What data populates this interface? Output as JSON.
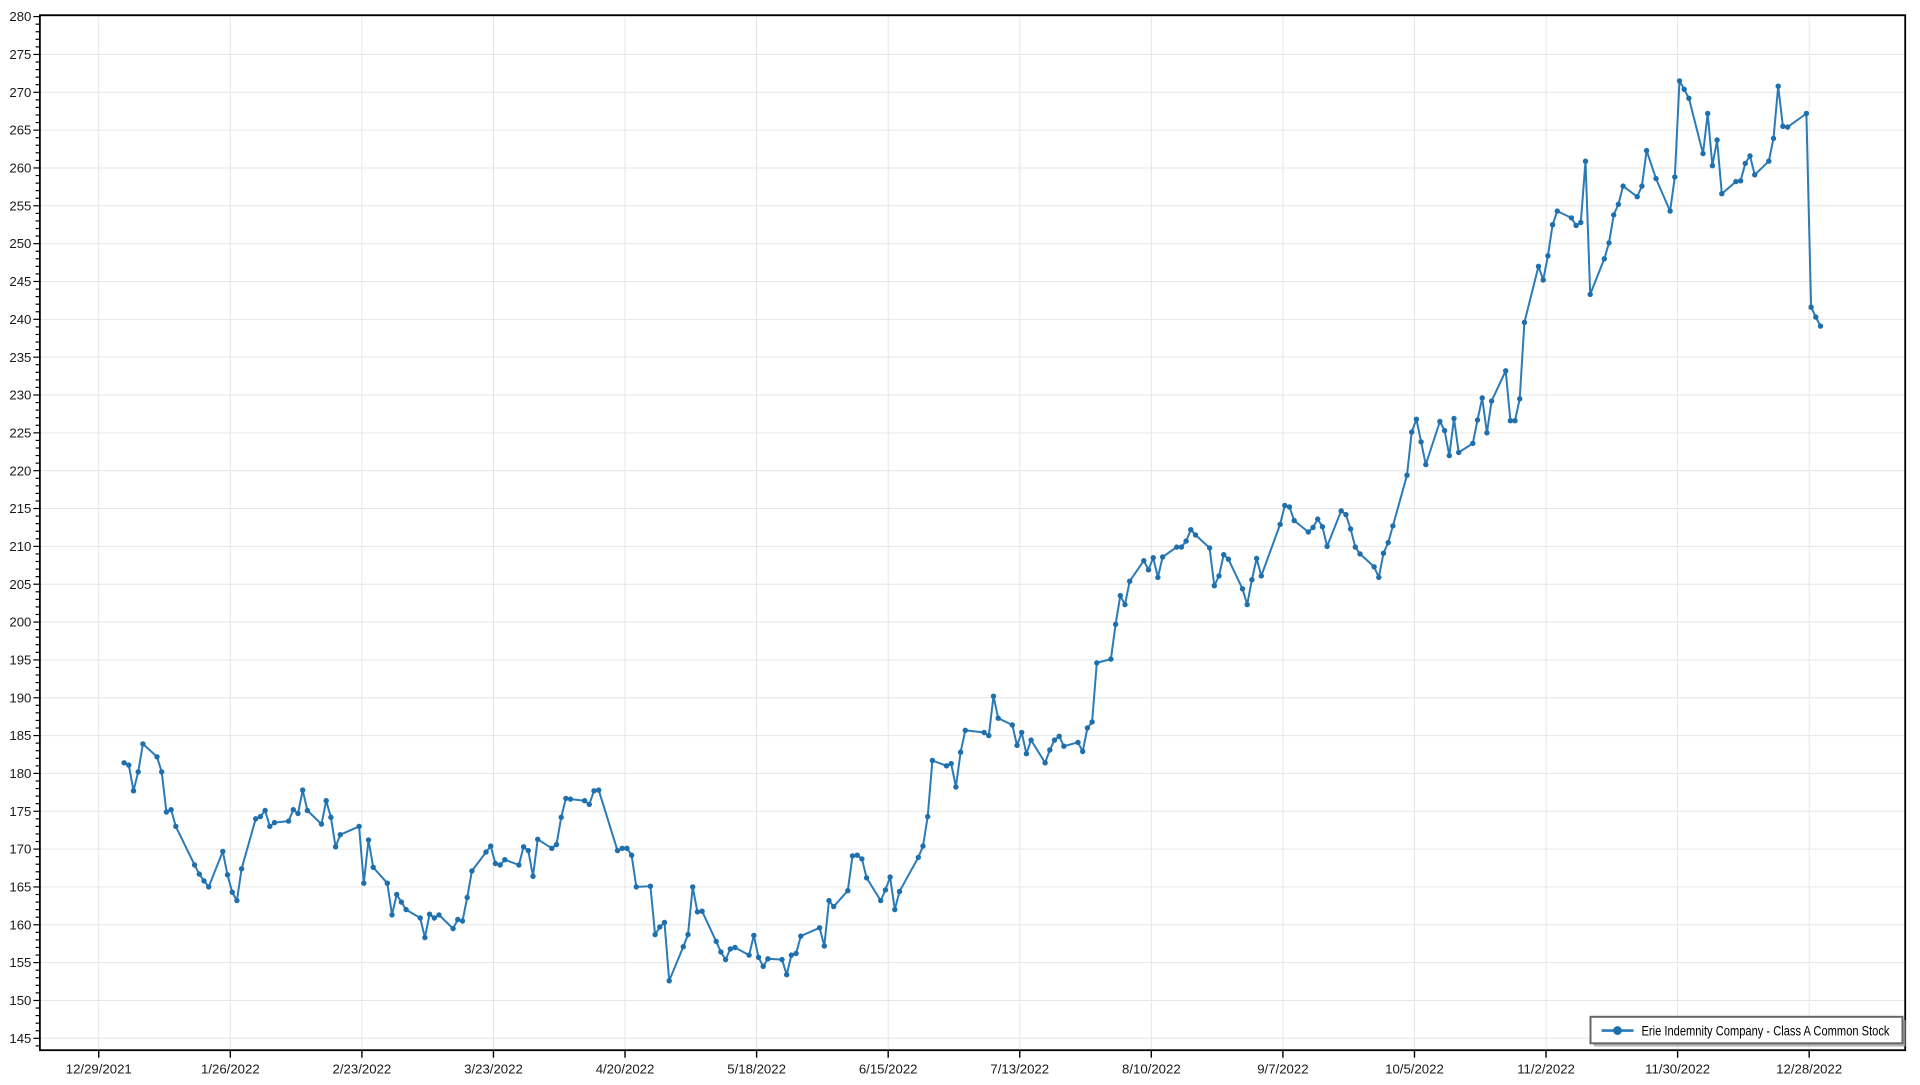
{
  "chart_data": {
    "type": "line",
    "title": "",
    "series": [
      {
        "name": "Erie Indemnity Company - Class A Common Stock",
        "dates": [
          "1/3/2022",
          "1/4/2022",
          "1/5/2022",
          "1/6/2022",
          "1/7/2022",
          "1/10/2022",
          "1/11/2022",
          "1/12/2022",
          "1/13/2022",
          "1/14/2022",
          "1/18/2022",
          "1/19/2022",
          "1/20/2022",
          "1/21/2022",
          "1/24/2022",
          "1/25/2022",
          "1/26/2022",
          "1/27/2022",
          "1/28/2022",
          "1/31/2022",
          "2/1/2022",
          "2/2/2022",
          "2/3/2022",
          "2/4/2022",
          "2/7/2022",
          "2/8/2022",
          "2/9/2022",
          "2/10/2022",
          "2/11/2022",
          "2/14/2022",
          "2/15/2022",
          "2/16/2022",
          "2/17/2022",
          "2/18/2022",
          "2/22/2022",
          "2/23/2022",
          "2/24/2022",
          "2/25/2022",
          "2/28/2022",
          "3/1/2022",
          "3/2/2022",
          "3/3/2022",
          "3/4/2022",
          "3/7/2022",
          "3/8/2022",
          "3/9/2022",
          "3/10/2022",
          "3/11/2022",
          "3/14/2022",
          "3/15/2022",
          "3/16/2022",
          "3/17/2022",
          "3/18/2022",
          "3/21/2022",
          "3/22/2022",
          "3/23/2022",
          "3/24/2022",
          "3/25/2022",
          "3/28/2022",
          "3/29/2022",
          "3/30/2022",
          "3/31/2022",
          "4/1/2022",
          "4/4/2022",
          "4/5/2022",
          "4/6/2022",
          "4/7/2022",
          "4/8/2022",
          "4/11/2022",
          "4/12/2022",
          "4/13/2022",
          "4/14/2022",
          "4/18/2022",
          "4/19/2022",
          "4/20/2022",
          "4/21/2022",
          "4/22/2022",
          "4/25/2022",
          "4/26/2022",
          "4/27/2022",
          "4/28/2022",
          "4/29/2022",
          "5/2/2022",
          "5/3/2022",
          "5/4/2022",
          "5/5/2022",
          "5/6/2022",
          "5/9/2022",
          "5/10/2022",
          "5/11/2022",
          "5/12/2022",
          "5/13/2022",
          "5/16/2022",
          "5/17/2022",
          "5/18/2022",
          "5/19/2022",
          "5/20/2022",
          "5/23/2022",
          "5/24/2022",
          "5/25/2022",
          "5/26/2022",
          "5/27/2022",
          "5/31/2022",
          "6/1/2022",
          "6/2/2022",
          "6/3/2022",
          "6/6/2022",
          "6/7/2022",
          "6/8/2022",
          "6/9/2022",
          "6/10/2022",
          "6/13/2022",
          "6/14/2022",
          "6/15/2022",
          "6/16/2022",
          "6/17/2022",
          "6/21/2022",
          "6/22/2022",
          "6/23/2022",
          "6/24/2022",
          "6/27/2022",
          "6/28/2022",
          "6/29/2022",
          "6/30/2022",
          "7/1/2022",
          "7/5/2022",
          "7/6/2022",
          "7/7/2022",
          "7/8/2022",
          "7/11/2022",
          "7/12/2022",
          "7/13/2022",
          "7/14/2022",
          "7/15/2022",
          "7/18/2022",
          "7/19/2022",
          "7/20/2022",
          "7/21/2022",
          "7/22/2022",
          "7/25/2022",
          "7/26/2022",
          "7/27/2022",
          "7/28/2022",
          "7/29/2022",
          "8/1/2022",
          "8/2/2022",
          "8/3/2022",
          "8/4/2022",
          "8/5/2022",
          "8/8/2022",
          "8/9/2022",
          "8/10/2022",
          "8/11/2022",
          "8/12/2022",
          "8/15/2022",
          "8/16/2022",
          "8/17/2022",
          "8/18/2022",
          "8/19/2022",
          "8/22/2022",
          "8/23/2022",
          "8/24/2022",
          "8/25/2022",
          "8/26/2022",
          "8/29/2022",
          "8/30/2022",
          "8/31/2022",
          "9/1/2022",
          "9/2/2022",
          "9/6/2022",
          "9/7/2022",
          "9/8/2022",
          "9/9/2022",
          "9/12/2022",
          "9/13/2022",
          "9/14/2022",
          "9/15/2022",
          "9/16/2022",
          "9/19/2022",
          "9/20/2022",
          "9/21/2022",
          "9/22/2022",
          "9/23/2022",
          "9/26/2022",
          "9/27/2022",
          "9/28/2022",
          "9/29/2022",
          "9/30/2022",
          "10/3/2022",
          "10/4/2022",
          "10/5/2022",
          "10/6/2022",
          "10/7/2022",
          "10/10/2022",
          "10/11/2022",
          "10/12/2022",
          "10/13/2022",
          "10/14/2022",
          "10/17/2022",
          "10/18/2022",
          "10/19/2022",
          "10/20/2022",
          "10/21/2022",
          "10/24/2022",
          "10/25/2022",
          "10/26/2022",
          "10/27/2022",
          "10/28/2022",
          "10/31/2022",
          "11/1/2022",
          "11/2/2022",
          "11/3/2022",
          "11/4/2022",
          "11/7/2022",
          "11/8/2022",
          "11/9/2022",
          "11/10/2022",
          "11/11/2022",
          "11/14/2022",
          "11/15/2022",
          "11/16/2022",
          "11/17/2022",
          "11/18/2022",
          "11/21/2022",
          "11/22/2022",
          "11/23/2022",
          "11/25/2022",
          "11/28/2022",
          "11/29/2022",
          "11/30/2022",
          "12/1/2022",
          "12/2/2022",
          "12/5/2022",
          "12/6/2022",
          "12/7/2022",
          "12/8/2022",
          "12/9/2022",
          "12/12/2022",
          "12/13/2022",
          "12/14/2022",
          "12/15/2022",
          "12/16/2022",
          "12/19/2022",
          "12/20/2022",
          "12/21/2022",
          "12/22/2022",
          "12/23/2022",
          "12/27/2022",
          "12/28/2022",
          "12/29/2022",
          "12/30/2022"
        ],
        "values": [
          181.4,
          181.1,
          177.7,
          180.2,
          183.9,
          182.2,
          180.2,
          174.9,
          175.2,
          173.0,
          167.9,
          166.7,
          165.8,
          165.0,
          169.7,
          166.6,
          164.3,
          163.2,
          167.4,
          174.0,
          174.3,
          175.1,
          173.0,
          173.5,
          173.7,
          175.2,
          174.7,
          177.8,
          175.1,
          173.3,
          176.4,
          174.2,
          170.3,
          171.9,
          173.0,
          165.5,
          171.2,
          167.6,
          165.5,
          161.3,
          164.0,
          163.0,
          162.0,
          160.9,
          158.3,
          161.4,
          160.9,
          161.3,
          159.5,
          160.7,
          160.5,
          163.6,
          167.1,
          169.6,
          170.4,
          168.1,
          167.9,
          168.6,
          167.9,
          170.3,
          169.8,
          166.4,
          171.3,
          170.1,
          170.6,
          174.2,
          176.7,
          176.6,
          176.4,
          175.9,
          177.7,
          177.8,
          169.8,
          170.1,
          170.1,
          169.2,
          165.0,
          165.1,
          158.7,
          159.7,
          160.3,
          152.6,
          157.1,
          158.7,
          165.0,
          161.7,
          161.8,
          157.8,
          156.4,
          155.4,
          156.8,
          157.0,
          156.0,
          158.6,
          155.7,
          154.5,
          155.5,
          155.4,
          153.4,
          156.0,
          156.2,
          158.5,
          159.6,
          157.2,
          163.2,
          162.4,
          164.5,
          169.1,
          169.2,
          168.7,
          166.2,
          163.2,
          164.6,
          166.3,
          162.0,
          164.4,
          168.9,
          170.4,
          174.3,
          181.7,
          181.0,
          181.3,
          178.2,
          182.8,
          185.7,
          185.4,
          185.0,
          190.2,
          187.3,
          186.4,
          183.7,
          185.4,
          182.6,
          184.4,
          181.4,
          183.1,
          184.4,
          184.9,
          183.6,
          184.1,
          182.9,
          186.0,
          186.8,
          194.6,
          195.1,
          199.7,
          203.5,
          202.3,
          205.4,
          208.1,
          206.9,
          208.5,
          205.9,
          208.6,
          209.9,
          209.9,
          210.7,
          212.2,
          211.5,
          209.8,
          204.8,
          206.1,
          208.9,
          208.3,
          204.4,
          202.3,
          205.6,
          208.4,
          206.1,
          212.9,
          215.4,
          215.2,
          213.4,
          211.9,
          212.5,
          213.6,
          212.6,
          210.0,
          214.7,
          214.2,
          212.3,
          209.9,
          209.0,
          207.3,
          205.9,
          209.1,
          210.5,
          212.7,
          219.4,
          225.1,
          226.8,
          223.8,
          220.8,
          226.5,
          225.3,
          222.0,
          226.9,
          222.4,
          223.6,
          226.7,
          229.6,
          225.0,
          229.2,
          233.2,
          226.6,
          226.6,
          229.5,
          239.6,
          247.0,
          245.2,
          248.4,
          252.5,
          254.3,
          253.4,
          252.4,
          252.8,
          260.9,
          243.3,
          248.0,
          250.1,
          253.8,
          255.2,
          257.6,
          256.2,
          257.6,
          262.3,
          258.6,
          254.3,
          258.8,
          271.5,
          270.4,
          269.2,
          261.9,
          267.2,
          260.3,
          263.7,
          256.6,
          258.2,
          258.3,
          260.6,
          261.6,
          259.1,
          260.9,
          263.9,
          270.8,
          265.5,
          265.4,
          267.2,
          241.6,
          240.3,
          239.1
        ]
      }
    ],
    "x_axis": {
      "tick_labels": [
        "12/29/2021",
        "1/26/2022",
        "2/23/2022",
        "3/23/2022",
        "4/20/2022",
        "5/18/2022",
        "6/15/2022",
        "7/13/2022",
        "8/10/2022",
        "9/7/2022",
        "10/5/2022",
        "11/2/2022",
        "11/30/2022",
        "12/28/2022"
      ],
      "start_date": "12/29/2021",
      "tick_interval_days": 28
    },
    "y_axis": {
      "tick_labels": [
        145,
        150,
        155,
        160,
        165,
        170,
        175,
        180,
        185,
        190,
        195,
        200,
        205,
        210,
        215,
        220,
        225,
        230,
        235,
        240,
        245,
        250,
        255,
        260,
        265,
        270,
        275,
        280
      ],
      "tick_step": 5,
      "minor_tick_step": 1,
      "axis_min": 143.45,
      "axis_max": 280.2
    },
    "grid": "on",
    "legend": {
      "position": "bottom-right",
      "entries": [
        "Erie Indemnity Company - Class A Common Stock"
      ]
    },
    "colors": {
      "line": "#2b7bb9",
      "marker": "#1e6fad",
      "grid": "#e6e6e6",
      "axis": "#000000",
      "text": "#1a1a1a",
      "legend_border": "#666666",
      "legend_bg": "#ffffff"
    }
  }
}
